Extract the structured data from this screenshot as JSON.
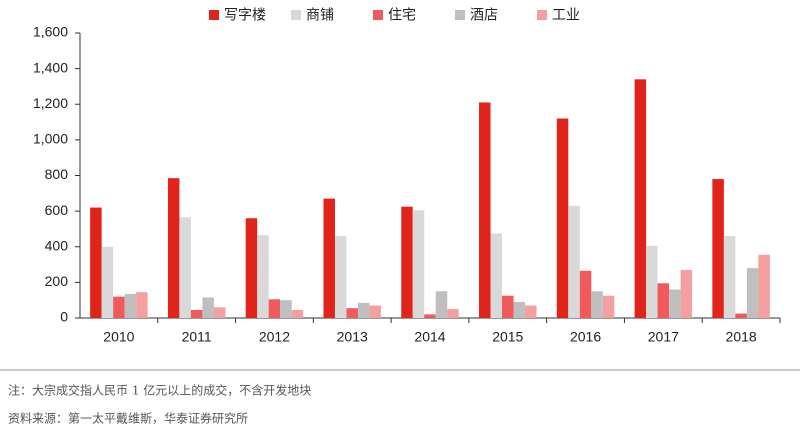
{
  "chart_data": {
    "type": "bar",
    "categories": [
      "2010",
      "2011",
      "2012",
      "2013",
      "2014",
      "2015",
      "2016",
      "2017",
      "2018"
    ],
    "series": [
      {
        "name": "写字楼",
        "color": "#e0231b",
        "values": [
          620,
          785,
          560,
          670,
          625,
          1210,
          1120,
          1340,
          780
        ]
      },
      {
        "name": "商铺",
        "color": "#d9d9d9",
        "values": [
          400,
          565,
          465,
          460,
          605,
          475,
          630,
          405,
          460
        ]
      },
      {
        "name": "住宅",
        "color": "#f05a5a",
        "values": [
          120,
          45,
          105,
          55,
          20,
          125,
          265,
          195,
          25
        ]
      },
      {
        "name": "酒店",
        "color": "#bfbfbf",
        "values": [
          135,
          115,
          100,
          85,
          150,
          90,
          150,
          160,
          280
        ]
      },
      {
        "name": "工业",
        "color": "#f4a0a0",
        "values": [
          145,
          60,
          45,
          70,
          50,
          70,
          125,
          270,
          355
        ]
      }
    ],
    "ylim": [
      0,
      1600
    ],
    "yticks": [
      0,
      200,
      400,
      600,
      800,
      {
        "value": 1000,
        "label": "1,000"
      },
      {
        "value": 1200,
        "label": "1,200"
      },
      {
        "value": 1400,
        "label": "1,400"
      },
      {
        "value": 1600,
        "label": "1,600"
      }
    ],
    "note": "注：大宗成交指人民币 1 亿元以上的成交，不含开发地块",
    "source": "资料来源：第一太平戴维斯，华泰证券研究所"
  }
}
